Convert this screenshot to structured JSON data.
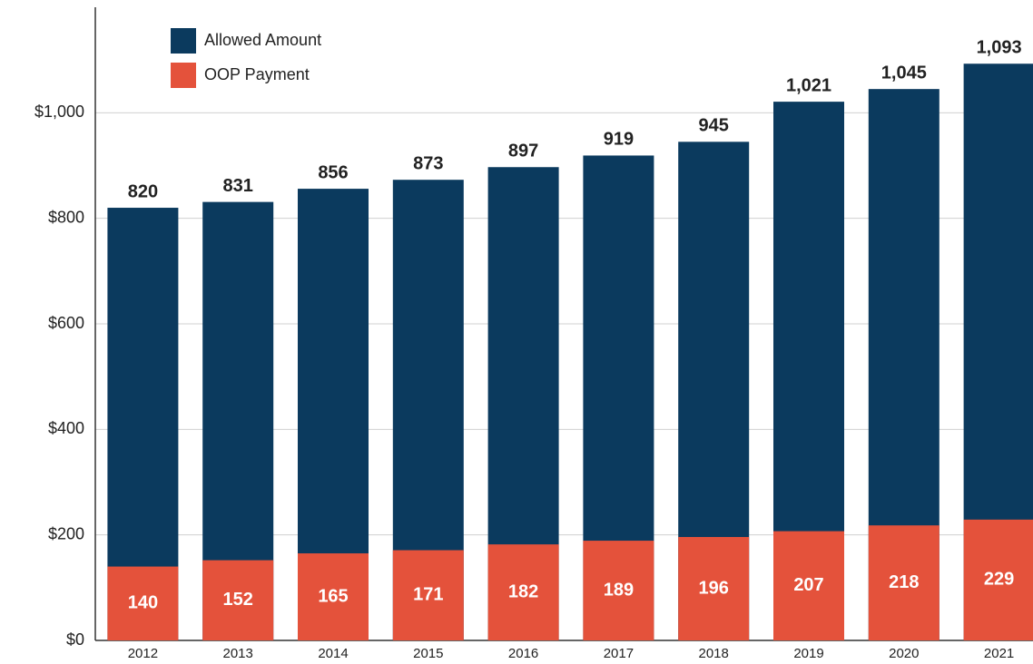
{
  "chart_data": {
    "type": "bar",
    "categories": [
      "2012",
      "2013",
      "2014",
      "2015",
      "2016",
      "2017",
      "2018",
      "2019",
      "2020",
      "2021"
    ],
    "series": [
      {
        "name": "Allowed Amount",
        "color": "#0b3a5e",
        "values": [
          820,
          831,
          856,
          873,
          897,
          919,
          945,
          1021,
          1045,
          1093
        ],
        "value_labels": [
          "820",
          "831",
          "856",
          "873",
          "897",
          "919",
          "945",
          "1,021",
          "1,045",
          "1,093"
        ]
      },
      {
        "name": "OOP Payment",
        "color": "#e4523b",
        "values": [
          140,
          152,
          165,
          171,
          182,
          189,
          196,
          207,
          218,
          229
        ]
      }
    ],
    "ylim": [
      0,
      1200
    ],
    "yticks": [
      {
        "value": 0,
        "label": "$0"
      },
      {
        "value": 200,
        "label": "$200"
      },
      {
        "value": 400,
        "label": "$400"
      },
      {
        "value": 600,
        "label": "$600"
      },
      {
        "value": 800,
        "label": "$800"
      },
      {
        "value": 1000,
        "label": "$1,000"
      }
    ],
    "grid": true
  }
}
